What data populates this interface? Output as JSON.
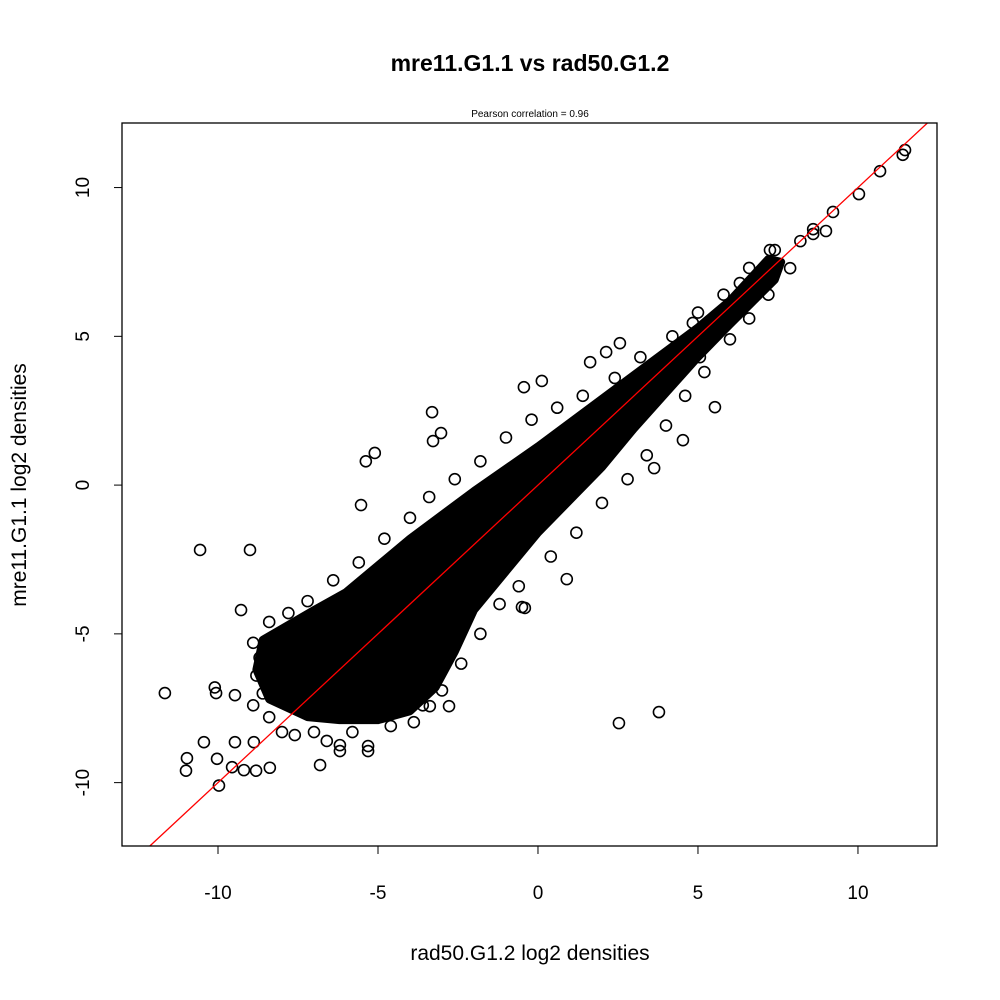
{
  "chart_data": {
    "type": "scatter",
    "title": "mre11.G1.1 vs rad50.G1.2",
    "subtitle": "Pearson correlation =  0.96",
    "xlabel": "rad50.G1.2 log2 densities",
    "ylabel": "mre11.G1.1 log2 densities",
    "xlim": [
      -13.0,
      12.47
    ],
    "ylim": [
      -12.13,
      12.17
    ],
    "xticks": [
      -10,
      -5,
      0,
      5,
      10
    ],
    "xtick_labels": [
      "-10",
      "-5",
      "0",
      "5",
      "10"
    ],
    "yticks": [
      -10,
      -5,
      0,
      5,
      10
    ],
    "ytick_labels": [
      "-10",
      "-5",
      "0",
      "5",
      "10"
    ],
    "grid": false,
    "marker": "open-circle",
    "point_color": "#000000",
    "fit_line": {
      "slope": 1,
      "intercept": 0,
      "color": "#ff0000"
    },
    "dense_region": [
      [
        -8.6,
        -5.2
      ],
      [
        -7,
        -4.2
      ],
      [
        -6,
        -3.6
      ],
      [
        -4,
        -1.8
      ],
      [
        -2,
        -0.2
      ],
      [
        0,
        1.3
      ],
      [
        2,
        2.9
      ],
      [
        4,
        4.5
      ],
      [
        5,
        5.3
      ],
      [
        6,
        6.2
      ],
      [
        7.2,
        7.6
      ],
      [
        7.6,
        7.5
      ],
      [
        7.4,
        6.9
      ],
      [
        6,
        5.4
      ],
      [
        5,
        4.3
      ],
      [
        4,
        3.1
      ],
      [
        3,
        1.9
      ],
      [
        2,
        0.6
      ],
      [
        1,
        -0.5
      ],
      [
        0,
        -1.6
      ],
      [
        -1,
        -2.9
      ],
      [
        -2,
        -4.2
      ],
      [
        -2.6,
        -5.6
      ],
      [
        -3.2,
        -6.8
      ],
      [
        -4,
        -7.6
      ],
      [
        -5,
        -7.9
      ],
      [
        -6.2,
        -7.9
      ],
      [
        -7.2,
        -7.8
      ],
      [
        -8.4,
        -7.2
      ],
      [
        -8.8,
        -6.2
      ]
    ],
    "points": [
      [
        -11.66,
        -6.99
      ],
      [
        -10.56,
        -2.18
      ],
      [
        -9.0,
        -2.18
      ],
      [
        -9.28,
        -4.2
      ],
      [
        -10.97,
        -9.18
      ],
      [
        -11.0,
        -9.6
      ],
      [
        -10.06,
        -6.99
      ],
      [
        -10.1,
        -6.8
      ],
      [
        -10.44,
        -8.64
      ],
      [
        -9.97,
        -10.1
      ],
      [
        -10.03,
        -9.2
      ],
      [
        -9.47,
        -7.06
      ],
      [
        -9.47,
        -8.64
      ],
      [
        -8.88,
        -8.64
      ],
      [
        -8.38,
        -9.5
      ],
      [
        -8.81,
        -9.6
      ],
      [
        -9.19,
        -9.58
      ],
      [
        -9.56,
        -9.48
      ],
      [
        5.53,
        2.62
      ],
      [
        3.63,
        0.57
      ],
      [
        2.53,
        -8.0
      ],
      [
        3.78,
        -7.63
      ],
      [
        0.9,
        -3.16
      ],
      [
        -0.41,
        -4.13
      ],
      [
        -0.5,
        -4.1
      ],
      [
        -5.38,
        0.8
      ],
      [
        -5.1,
        1.08
      ],
      [
        -5.53,
        -0.67
      ],
      [
        0.12,
        3.5
      ],
      [
        -0.44,
        3.29
      ],
      [
        1.63,
        4.13
      ],
      [
        2.13,
        4.47
      ],
      [
        2.56,
        4.77
      ],
      [
        4.84,
        5.45
      ],
      [
        10.03,
        9.78
      ],
      [
        10.69,
        10.55
      ],
      [
        11.47,
        11.26
      ],
      [
        11.4,
        11.1
      ],
      [
        9.22,
        9.18
      ],
      [
        9.0,
        8.54
      ],
      [
        8.6,
        8.44
      ],
      [
        -3.31,
        2.45
      ],
      [
        -3.03,
        1.75
      ],
      [
        -3.28,
        1.48
      ],
      [
        -6.84,
        -7.09
      ],
      [
        -6.81,
        -9.41
      ],
      [
        -6.19,
        -8.94
      ],
      [
        -6.19,
        -8.74
      ],
      [
        -5.31,
        -8.77
      ],
      [
        -5.31,
        -8.94
      ],
      [
        -3.88,
        -7.97
      ],
      [
        -3.38,
        -7.43
      ],
      [
        -2.78,
        -7.43
      ],
      [
        4.53,
        1.51
      ],
      [
        5.06,
        4.3
      ],
      [
        6.31,
        6.79
      ],
      [
        7.25,
        7.9
      ],
      [
        7.88,
        7.29
      ],
      [
        -8.9,
        -5.3
      ],
      [
        -8.7,
        -5.8
      ],
      [
        -8.8,
        -6.4
      ],
      [
        -8.6,
        -7.0
      ],
      [
        -8.9,
        -7.4
      ],
      [
        -8.4,
        -7.8
      ],
      [
        -8.0,
        -8.3
      ],
      [
        -7.6,
        -8.4
      ],
      [
        -7.0,
        -8.3
      ],
      [
        -6.6,
        -8.6
      ],
      [
        -5.8,
        -8.3
      ],
      [
        -4.6,
        -8.1
      ],
      [
        -3.6,
        -7.4
      ],
      [
        -3.0,
        -6.9
      ],
      [
        -2.4,
        -6.0
      ],
      [
        -1.8,
        -5.0
      ],
      [
        -1.2,
        -4.0
      ],
      [
        -0.6,
        -3.4
      ],
      [
        0.4,
        -2.4
      ],
      [
        1.2,
        -1.6
      ],
      [
        2.0,
        -0.6
      ],
      [
        2.8,
        0.2
      ],
      [
        3.4,
        1.0
      ],
      [
        4.0,
        2.0
      ],
      [
        4.6,
        3.0
      ],
      [
        5.2,
        3.8
      ],
      [
        6.0,
        4.9
      ],
      [
        6.6,
        5.6
      ],
      [
        7.2,
        6.4
      ],
      [
        -8.4,
        -4.6
      ],
      [
        -7.8,
        -4.3
      ],
      [
        -7.2,
        -3.9
      ],
      [
        -6.4,
        -3.2
      ],
      [
        -5.6,
        -2.6
      ],
      [
        -4.8,
        -1.8
      ],
      [
        -4.0,
        -1.1
      ],
      [
        -3.4,
        -0.4
      ],
      [
        -2.6,
        0.2
      ],
      [
        -1.8,
        0.8
      ],
      [
        -1.0,
        1.6
      ],
      [
        -0.2,
        2.2
      ],
      [
        0.6,
        2.6
      ],
      [
        1.4,
        3.0
      ],
      [
        2.4,
        3.6
      ],
      [
        3.2,
        4.3
      ],
      [
        4.2,
        5.0
      ],
      [
        5.0,
        5.8
      ],
      [
        5.8,
        6.4
      ],
      [
        6.6,
        7.3
      ],
      [
        7.4,
        7.9
      ],
      [
        8.2,
        8.2
      ],
      [
        8.6,
        8.6
      ]
    ]
  }
}
